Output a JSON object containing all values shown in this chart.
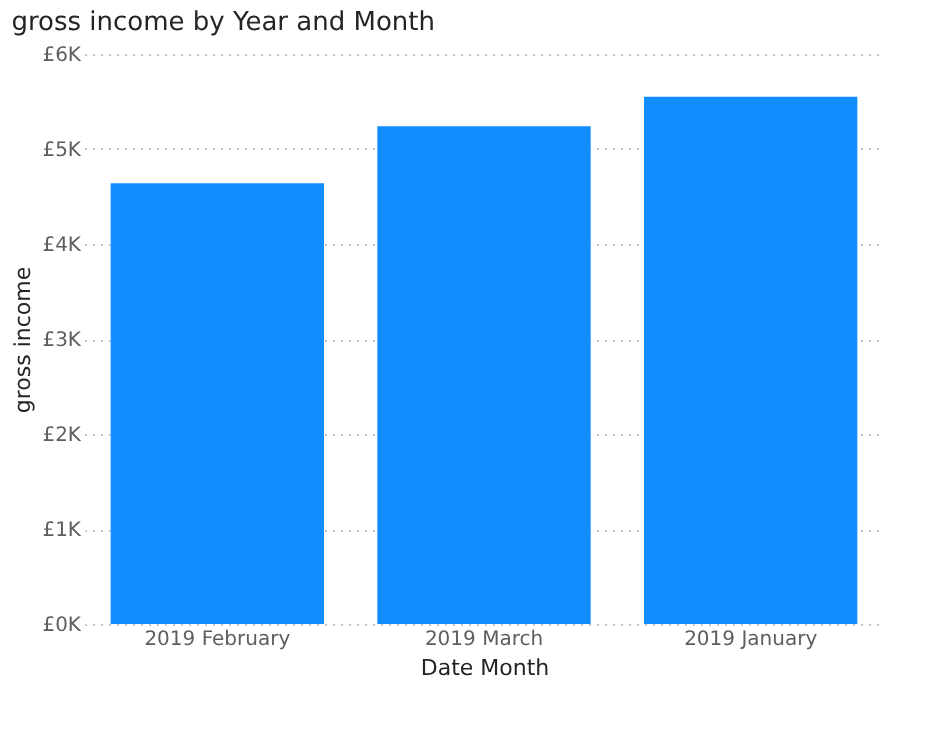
{
  "chart_data": {
    "type": "bar",
    "title": "gross income by Year and Month",
    "xlabel": "Date Month",
    "ylabel": "gross income",
    "categories": [
      "2019 February",
      "2019 March",
      "2019 January"
    ],
    "series": [
      {
        "color": "#118dff",
        "values": [
          4640,
          5240,
          5550
        ]
      }
    ],
    "ylim": [
      0,
      6000
    ],
    "yticks": [
      {
        "value": 0,
        "label": "£0K"
      },
      {
        "value": 1000,
        "label": "£1K"
      },
      {
        "value": 2000,
        "label": "£2K"
      },
      {
        "value": 3000,
        "label": "£3K"
      },
      {
        "value": 4000,
        "label": "£4K"
      },
      {
        "value": 5000,
        "label": "£5K"
      },
      {
        "value": 6000,
        "label": "£6K"
      }
    ],
    "grid": "y"
  }
}
